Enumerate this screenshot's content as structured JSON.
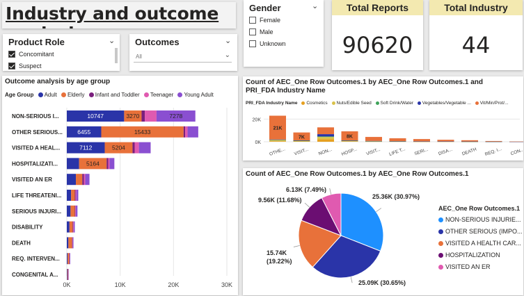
{
  "page_title": "Industry and outcome analysis",
  "product_role": {
    "title": "Product Role",
    "options": [
      {
        "label": "Concomitant",
        "checked": true
      },
      {
        "label": "Suspect",
        "checked": true
      }
    ]
  },
  "outcomes": {
    "title": "Outcomes",
    "selected": "All"
  },
  "gender": {
    "title": "Gender",
    "options": [
      {
        "label": "Female",
        "checked": false
      },
      {
        "label": "Male",
        "checked": false
      },
      {
        "label": "Unknown",
        "checked": false
      }
    ]
  },
  "kpi": {
    "total_reports_label": "Total Reports",
    "total_reports_value": "90620",
    "total_industry_label": "Total Industry",
    "total_industry_value": "44"
  },
  "colors": {
    "adult": "#2a34a8",
    "elderly": "#e8713a",
    "infant": "#7a1f7d",
    "teenager": "#e05ab0",
    "young_adult": "#8a4fd1",
    "kpi_header": "#f3e9b0"
  },
  "chart_data": [
    {
      "type": "bar",
      "orientation": "horizontal",
      "stacked": true,
      "title": "Outcome analysis by age group",
      "legend_title": "Age Group",
      "legend_position": "top",
      "categories": [
        "NON-SERIOUS I...",
        "OTHER SERIOUS...",
        "VISITED A HEAL...",
        "HOSPITALIZATI...",
        "VISITED AN ER",
        "LIFE THREATENI...",
        "SERIOUS INJURI...",
        "DISABILITY",
        "DEATH",
        "REQ. INTERVEN...",
        "CONGENITAL A..."
      ],
      "series": [
        {
          "name": "Adult",
          "values": [
            10747,
            6455,
            7112,
            2300,
            1700,
            800,
            700,
            500,
            300,
            150,
            100
          ]
        },
        {
          "name": "Elderly",
          "values": [
            3270,
            15433,
            5204,
            5164,
            1200,
            700,
            800,
            600,
            700,
            300,
            100
          ]
        },
        {
          "name": "Infant and Toddler",
          "values": [
            600,
            300,
            400,
            300,
            300,
            150,
            100,
            100,
            50,
            50,
            50
          ]
        },
        {
          "name": "Teenager",
          "values": [
            2200,
            450,
            800,
            250,
            250,
            150,
            100,
            100,
            50,
            50,
            30
          ]
        },
        {
          "name": "Young Adult",
          "values": [
            7278,
            2000,
            2200,
            900,
            800,
            350,
            300,
            200,
            150,
            100,
            50
          ]
        }
      ],
      "data_labels": [
        {
          "row": 0,
          "series": 0,
          "text": "10747"
        },
        {
          "row": 0,
          "series": 1,
          "text": "3270"
        },
        {
          "row": 0,
          "series": 4,
          "text": "7278"
        },
        {
          "row": 1,
          "series": 0,
          "text": "6455"
        },
        {
          "row": 1,
          "series": 1,
          "text": "15433"
        },
        {
          "row": 2,
          "series": 0,
          "text": "7112"
        },
        {
          "row": 2,
          "series": 1,
          "text": "5204"
        },
        {
          "row": 3,
          "series": 1,
          "text": "5164"
        }
      ],
      "x_ticks": [
        "0K",
        "10K",
        "20K",
        "30K"
      ],
      "xlim": [
        0,
        30000
      ],
      "grid": true
    },
    {
      "type": "bar",
      "stacked": true,
      "title": "Count of AEC_One Row Outcomes.1 by AEC_One Row Outcomes.1 and PRI_FDA Industry Name",
      "legend_title": "PRI_FDA Industry Name",
      "legend_position": "top",
      "legend_entries": [
        {
          "name": "Cosmetics",
          "color": "#e6a020"
        },
        {
          "name": "Nuts/Edible Seed",
          "color": "#d9c24a"
        },
        {
          "name": "Soft Drink/Water",
          "color": "#3fa35a"
        },
        {
          "name": "Vegetables/Vegetable ...",
          "color": "#2a34a8"
        },
        {
          "name": "Vit/Min/Prot/...",
          "color": "#e8713a"
        }
      ],
      "categories": [
        "OTHE...",
        "VISIT...",
        "NON...",
        "HOSP...",
        "VISIT...",
        "LIFE T...",
        "SERI...",
        "DISA...",
        "DEATH",
        "REQ. I...",
        "CON..."
      ],
      "series": [
        {
          "name": "Cosmetics",
          "values": [
            500,
            300,
            2200,
            400,
            200,
            200,
            100,
            150,
            80,
            60,
            20
          ]
        },
        {
          "name": "Nuts/Edible Seed",
          "values": [
            1000,
            500,
            2000,
            500,
            300,
            200,
            150,
            100,
            80,
            50,
            20
          ]
        },
        {
          "name": "Soft Drink/Water",
          "values": [
            200,
            100,
            500,
            100,
            50,
            50,
            30,
            30,
            20,
            10,
            10
          ]
        },
        {
          "name": "Vegetables/Vegetable ...",
          "values": [
            300,
            300,
            2000,
            200,
            200,
            100,
            100,
            80,
            60,
            30,
            10
          ]
        },
        {
          "name": "Vit/Min/Prot/...",
          "values": [
            21000,
            7000,
            6000,
            8000,
            3500,
            2500,
            2000,
            1400,
            1100,
            500,
            150
          ]
        }
      ],
      "data_labels": [
        {
          "col": 0,
          "text": "21K"
        },
        {
          "col": 1,
          "text": "7K"
        },
        {
          "col": 3,
          "text": "8K"
        }
      ],
      "y_ticks": [
        "0K",
        "20K"
      ],
      "ylim": [
        0,
        27000
      ]
    },
    {
      "type": "pie",
      "title": "Count of AEC_One Row Outcomes.1 by AEC_One Row Outcomes.1",
      "legend_title": "AEC_One Row Outcomes.1",
      "legend_position": "right",
      "slices": [
        {
          "name": "NON-SERIOUS INJURIE...",
          "value": 25.36,
          "label": "25.36K (30.97%)",
          "color": "#1e90ff"
        },
        {
          "name": "OTHER SERIOUS (IMPO...",
          "value": 25.09,
          "label": "25.09K (30.65%)",
          "color": "#2a34a8"
        },
        {
          "name": "VISITED A HEALTH CAR...",
          "value": 15.74,
          "label": "15.74K\n(19.22%)",
          "color": "#e8713a"
        },
        {
          "name": "HOSPITALIZATION",
          "value": 9.56,
          "label": "9.56K (11.68%)",
          "color": "#6b0e72"
        },
        {
          "name": "VISITED AN ER",
          "value": 6.13,
          "label": "6.13K (7.49%)",
          "color": "#e05ab0"
        }
      ]
    }
  ]
}
